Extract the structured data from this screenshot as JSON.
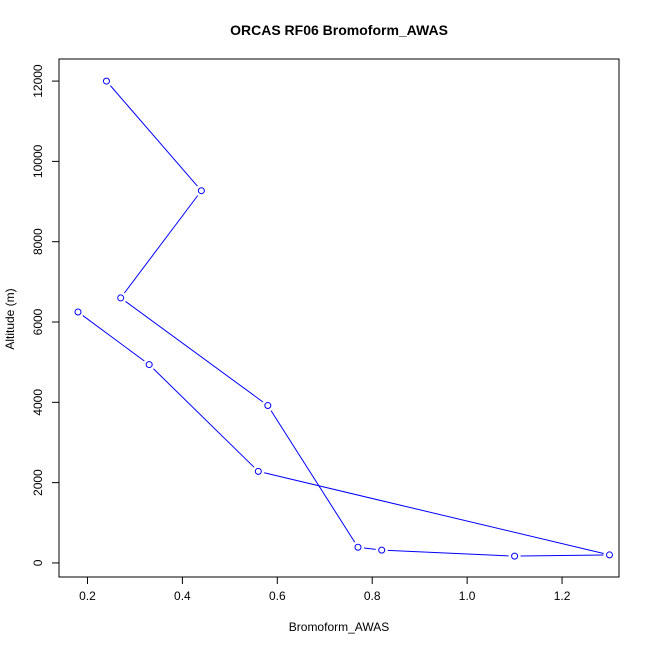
{
  "chart_data": {
    "type": "line",
    "title": "ORCAS RF06 Bromoform_AWAS",
    "xlabel": "Bromoform_AWAS",
    "ylabel": "Altitude (m)",
    "xlim": [
      0.14,
      1.32
    ],
    "ylim": [
      -350,
      12550
    ],
    "x_ticks": [
      0.2,
      0.4,
      0.6,
      0.8,
      1.0,
      1.2
    ],
    "x_tick_labels": [
      "0.2",
      "0.4",
      "0.6",
      "0.8",
      "1.0",
      "1.2"
    ],
    "y_ticks": [
      0,
      2000,
      4000,
      6000,
      8000,
      10000,
      12000
    ],
    "y_tick_labels": [
      "0",
      "2000",
      "4000",
      "6000",
      "8000",
      "10000",
      "12000"
    ],
    "grid": false,
    "series": [
      {
        "color": "#0000ff",
        "x": [
          0.24,
          0.44,
          0.27,
          0.58,
          0.77,
          0.82,
          1.1,
          1.3,
          0.56,
          0.33,
          0.18
        ],
        "y": [
          12000,
          9270,
          6600,
          3920,
          390,
          320,
          170,
          200,
          2280,
          4940,
          6250
        ]
      }
    ]
  }
}
